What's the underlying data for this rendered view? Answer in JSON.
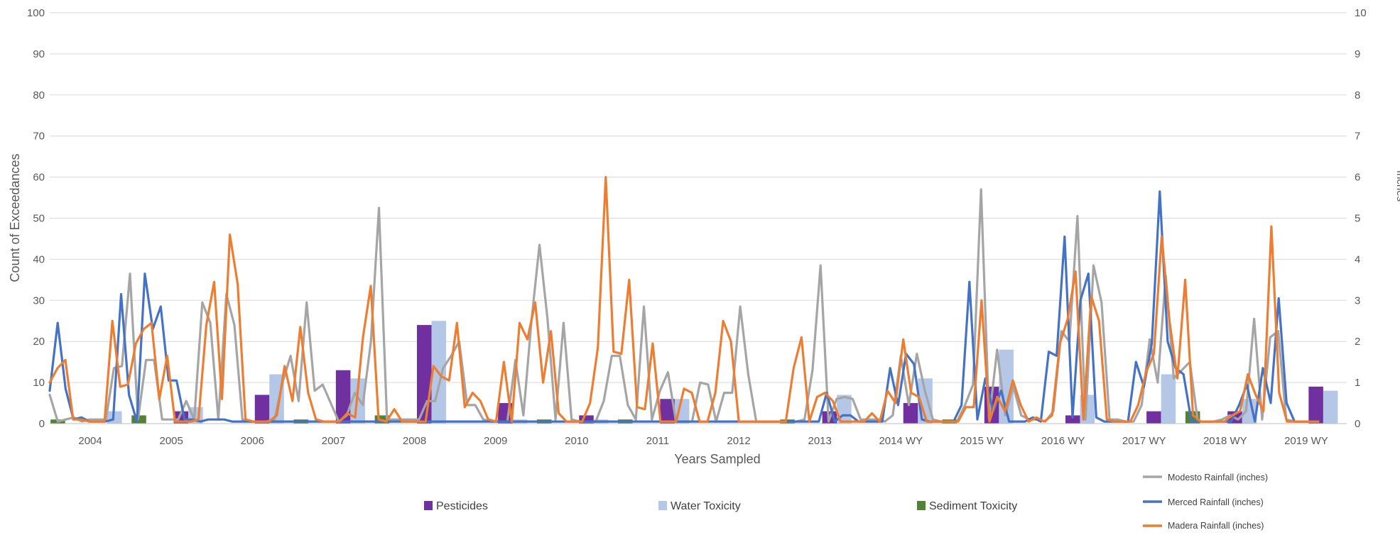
{
  "chart_data": {
    "type": "bar",
    "xlabel": "Years Sampled",
    "ylabel": "Count of Exceedances",
    "y2label": "Inches",
    "ylim": [
      0,
      100
    ],
    "y2lim": [
      0,
      10
    ],
    "yticks": [
      "0",
      "10",
      "20",
      "30",
      "40",
      "50",
      "60",
      "70",
      "80",
      "90",
      "100"
    ],
    "y2ticks": [
      "0",
      "1",
      "2",
      "3",
      "4",
      "5",
      "6",
      "7",
      "8",
      "9",
      "10"
    ],
    "grid": true,
    "categories": [
      "2004",
      "2005",
      "2006",
      "2007",
      "2008",
      "2009",
      "2010",
      "2011",
      "2012",
      "2013",
      "2014 WY",
      "2015 WY",
      "2016 WY",
      "2017 WY",
      "2018 WY",
      "2019 WY"
    ],
    "bar_series": [
      {
        "name": "Pesticides",
        "color": "#7030A0",
        "values": [
          0,
          3,
          7,
          13,
          24,
          5,
          2,
          6,
          0,
          3,
          5,
          9,
          2,
          3,
          3,
          9
        ]
      },
      {
        "name": "Water Toxicity",
        "color": "#B4C7E7",
        "values": [
          3,
          4,
          12,
          11,
          25,
          1,
          1,
          6,
          0,
          7,
          11,
          18,
          7,
          12,
          6,
          8
        ]
      },
      {
        "name": "Sediment Toxicity",
        "color": "#548235",
        "values": [
          1,
          2,
          0,
          1,
          2,
          0,
          1,
          1,
          0,
          1,
          0,
          1,
          0,
          0,
          3,
          0
        ]
      }
    ],
    "line_series": [
      {
        "name": "Modesto Rainfall (inches)",
        "color": "#A5A5A5",
        "axis": "y2",
        "values": [
          0.7,
          0.05,
          0.1,
          0.15,
          0.05,
          0.1,
          0.1,
          0.1,
          1.35,
          1.4,
          3.65,
          0.1,
          1.55,
          1.55,
          0.1,
          0.1,
          0.1,
          0.55,
          0.1,
          2.95,
          2.45,
          0.1,
          3.15,
          2.4,
          0.1,
          0.05,
          0.05,
          0.05,
          0.1,
          1.0,
          1.65,
          0.55,
          2.95,
          0.8,
          0.95,
          0.5,
          0.05,
          0.2,
          0.75,
          0.45,
          2.0,
          5.25,
          0.1,
          0.1,
          0.1,
          0.1,
          0.1,
          0.55,
          0.55,
          1.35,
          1.65,
          2.0,
          0.45,
          0.45,
          0.1,
          0.05,
          0.05,
          0.05,
          1.55,
          0.2,
          2.5,
          4.35,
          2.55,
          0.1,
          2.45,
          0.1,
          0.05,
          0.05,
          0.05,
          0.55,
          1.65,
          1.65,
          0.45,
          0.1,
          2.85,
          0.1,
          0.8,
          1.25,
          0.05,
          0.05,
          0.05,
          1.0,
          0.95,
          0.05,
          0.75,
          0.75,
          2.85,
          1.2,
          0.05,
          0.05,
          0.05,
          0.05,
          0.05,
          0.05,
          0.1,
          1.3,
          3.85,
          0.05,
          0.6,
          0.65,
          0.6,
          0.1,
          0.1,
          0.1,
          0.05,
          0.2,
          1.65,
          0.45,
          1.7,
          0.8,
          0.1,
          0.05,
          0.05,
          0.05,
          0.45,
          0.95,
          5.7,
          0.1,
          1.8,
          0.2,
          0.9,
          0.2,
          0.1,
          0.1,
          0.05,
          0.3,
          2.25,
          2.0,
          5.05,
          0.1,
          3.85,
          2.95,
          0.1,
          0.1,
          0.05,
          0.05,
          0.45,
          2.05,
          1.0,
          3.6,
          1.1,
          1.3,
          1.5,
          0.05,
          0.05,
          0.05,
          0.1,
          0.2,
          0.1,
          0.3,
          2.55,
          0.1,
          2.1,
          2.25,
          0.1,
          0.05,
          0.05,
          0.05,
          0.05
        ]
      },
      {
        "name": "Merced Rainfall (inches)",
        "color": "#4472C4",
        "axis": "y2",
        "values": [
          0.8,
          2.45,
          0.85,
          0.1,
          0.15,
          0.05,
          0.05,
          0.05,
          0.1,
          3.15,
          0.7,
          0.05,
          3.65,
          2.3,
          2.85,
          1.05,
          1.05,
          0.1,
          0.1,
          0.05,
          0.1,
          0.1,
          0.1,
          0.05,
          0.05,
          0.05,
          0.05,
          0.05,
          0.05,
          0.05,
          0.05,
          0.05,
          0.05,
          0.05,
          0.05,
          0.05,
          0.05,
          0.05,
          0.05,
          0.05,
          0.05,
          0.05,
          0.05,
          0.05,
          0.05,
          0.05,
          0.05,
          0.05,
          0.05,
          0.05,
          0.05,
          0.05,
          0.05,
          0.05,
          0.05,
          0.05,
          0.05,
          0.05,
          0.05,
          0.05,
          0.05,
          0.05,
          0.05,
          0.05,
          0.05,
          0.05,
          0.05,
          0.05,
          0.05,
          0.05,
          0.05,
          0.05,
          0.05,
          0.05,
          0.05,
          0.05,
          0.05,
          0.05,
          0.05,
          0.05,
          0.05,
          0.05,
          0.05,
          0.05,
          0.05,
          0.05,
          0.05,
          0.05,
          0.05,
          0.05,
          0.05,
          0.05,
          0.05,
          0.05,
          0.05,
          0.05,
          0.05,
          0.05,
          0.75,
          0.05,
          0.2,
          0.2,
          0.05,
          0.05,
          0.05,
          0.05,
          1.35,
          0.45,
          1.7,
          1.45,
          0.1,
          0.05,
          0.05,
          0.05,
          0.05,
          0.45,
          3.45,
          0.1,
          1.1,
          0.3,
          0.8,
          0.05,
          0.05,
          0.05,
          0.15,
          0.05,
          1.75,
          1.65,
          4.55,
          0.15,
          3.0,
          3.65,
          0.15,
          0.05,
          0.05,
          0.05,
          0.05,
          1.5,
          0.9,
          1.95,
          5.65,
          2.0,
          1.35,
          1.2,
          0.05,
          0.05,
          0.05,
          0.05,
          0.05,
          0.05,
          0.45,
          0.95,
          0.05,
          1.35,
          0.5,
          3.05,
          0.5,
          0.05,
          0.05,
          0.05,
          0.05
        ]
      },
      {
        "name": "Madera Rainfall (inches)",
        "color": "#ED7D31",
        "axis": "y2",
        "values": [
          1.0,
          1.35,
          1.55,
          0.1,
          0.1,
          0.05,
          0.05,
          0.05,
          2.5,
          0.9,
          0.95,
          1.95,
          2.3,
          2.45,
          0.6,
          1.65,
          0.05,
          0.05,
          0.05,
          0.1,
          2.4,
          3.45,
          0.6,
          4.6,
          3.4,
          0.1,
          0.05,
          0.05,
          0.05,
          0.2,
          1.4,
          0.55,
          2.35,
          0.75,
          0.1,
          0.05,
          0.05,
          0.05,
          0.25,
          0.15,
          2.1,
          3.35,
          0.1,
          0.05,
          0.35,
          0.05,
          0.05,
          0.05,
          0.05,
          1.4,
          1.15,
          1.05,
          2.45,
          0.4,
          0.75,
          0.55,
          0.1,
          0.05,
          1.5,
          0.05,
          2.45,
          2.05,
          2.95,
          1.0,
          2.25,
          0.25,
          0.05,
          0.05,
          0.05,
          0.5,
          1.85,
          6.0,
          1.75,
          1.7,
          3.5,
          0.4,
          0.35,
          1.95,
          0.05,
          0.05,
          0.05,
          0.85,
          0.75,
          0.05,
          0.05,
          0.75,
          2.5,
          2.0,
          0.05,
          0.05,
          0.05,
          0.05,
          0.05,
          0.05,
          0.05,
          1.35,
          2.1,
          0.05,
          0.65,
          0.75,
          0.55,
          0.05,
          0.05,
          0.05,
          0.05,
          0.25,
          0.05,
          0.8,
          0.5,
          2.05,
          0.75,
          0.65,
          0.05,
          0.05,
          0.05,
          0.05,
          0.05,
          0.4,
          0.4,
          3.0,
          0.05,
          0.65,
          0.3,
          1.05,
          0.45,
          0.05,
          0.15,
          0.05,
          0.2,
          1.95,
          2.55,
          3.7,
          0.1,
          3.1,
          2.5,
          0.1,
          0.05,
          0.05,
          0.05,
          0.45,
          1.25,
          1.7,
          4.55,
          2.5,
          1.1,
          3.5,
          0.2,
          0.05,
          0.05,
          0.05,
          0.05,
          0.2,
          0.3,
          1.2,
          0.7,
          0.3,
          4.8,
          0.75,
          0.05,
          0.05,
          0.05,
          0.05,
          0.05
        ]
      }
    ],
    "legend_placement": "bottom"
  }
}
